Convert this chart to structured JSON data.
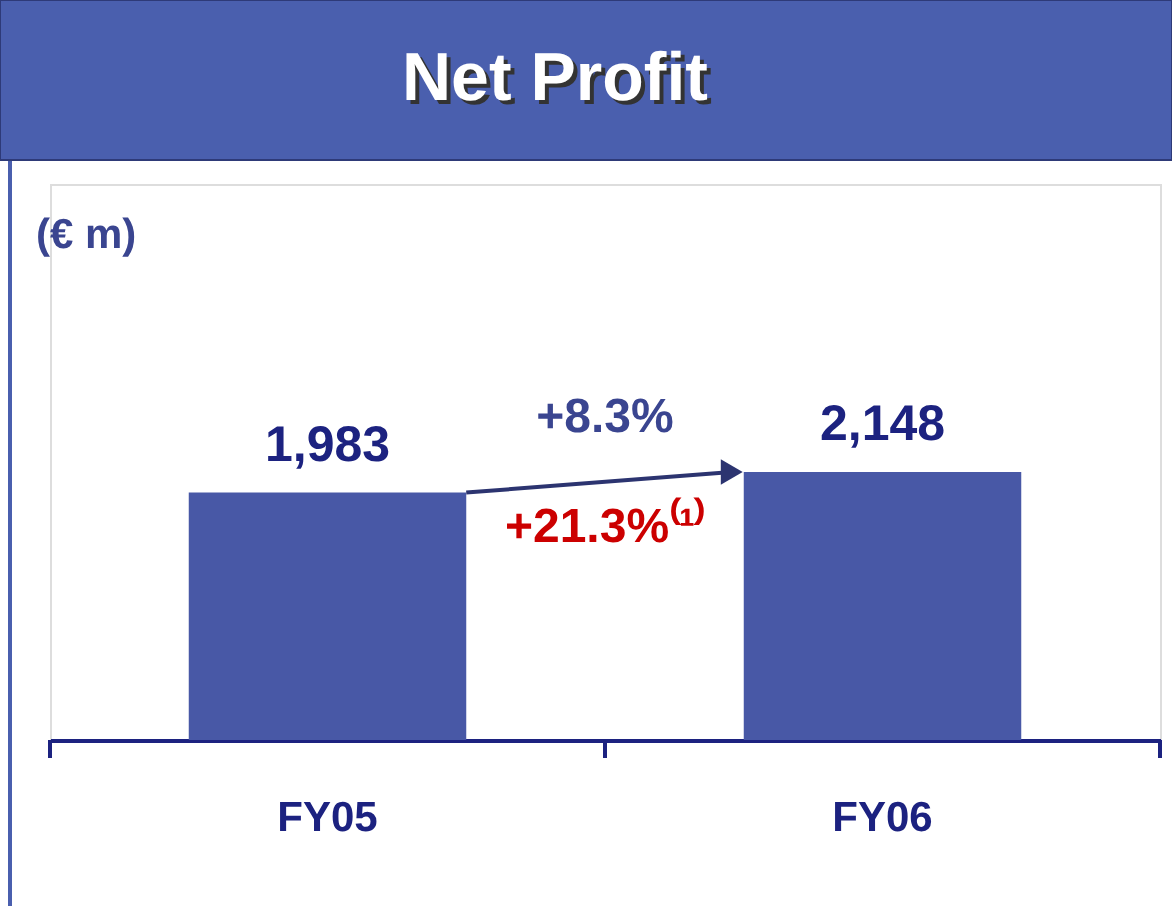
{
  "chart_data": {
    "type": "bar",
    "title": "Net Profit",
    "categories": [
      "FY05",
      "FY06"
    ],
    "values": [
      1983,
      2148
    ],
    "value_labels": [
      "1,983",
      "2,148"
    ],
    "color": "#4858a6",
    "tick_labels": "x",
    "annotations": [
      "(€ m)",
      "+8.3%",
      "+21.3%⁽¹⁾"
    ]
  }
}
